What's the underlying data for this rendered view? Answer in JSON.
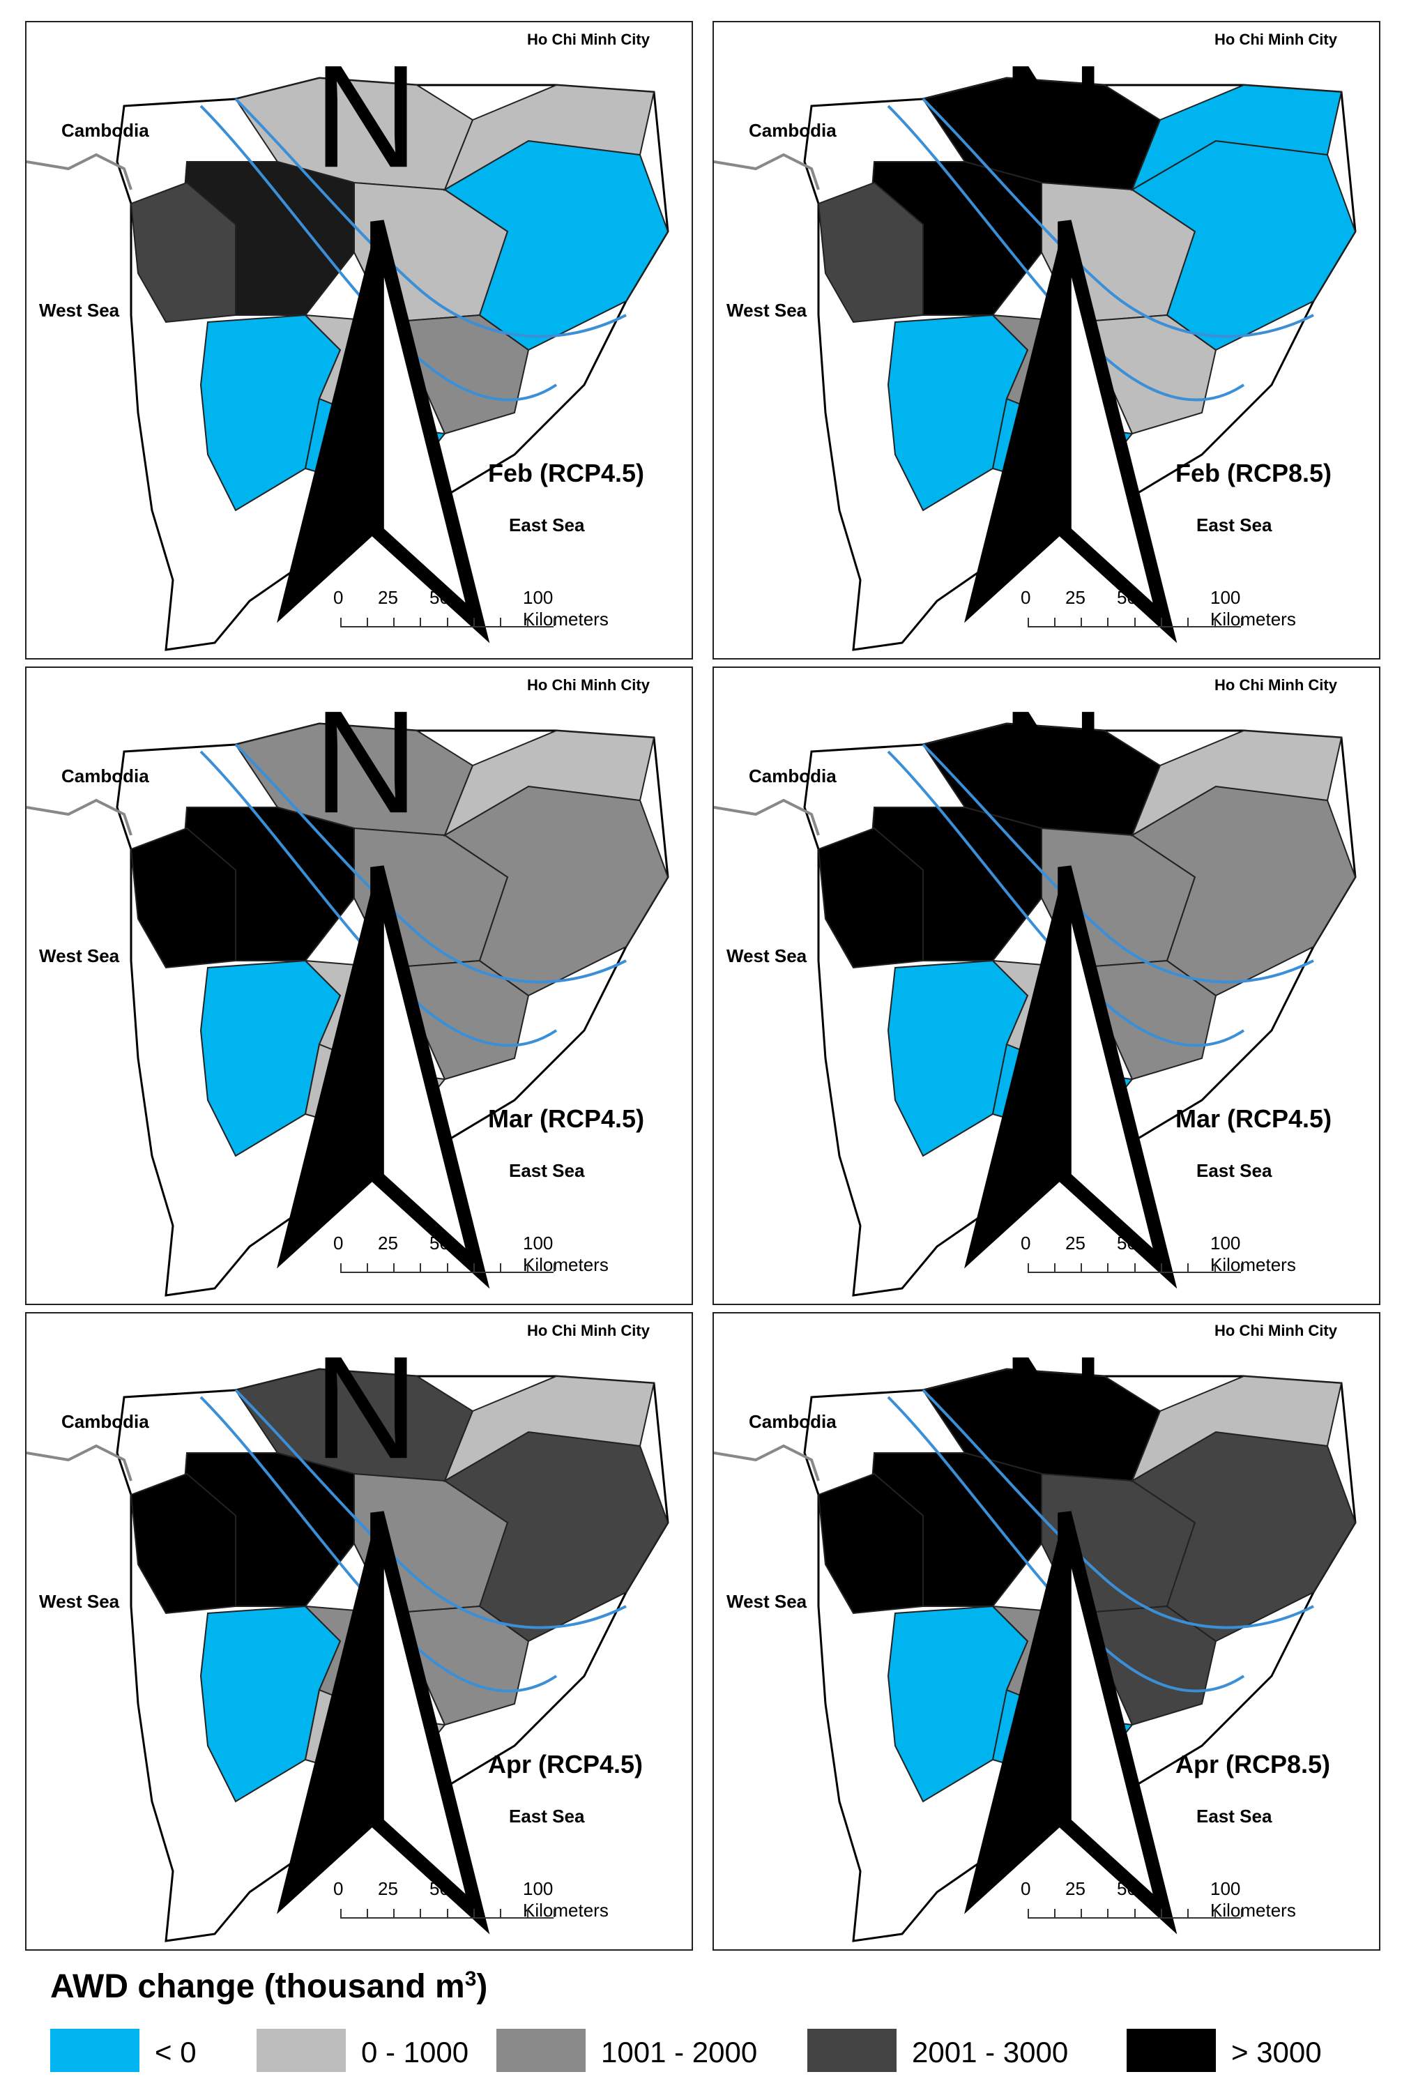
{
  "panels": [
    {
      "title": "Feb (RCP4.5)",
      "shades": [
        "#bdbdbd",
        "#1a1a1a",
        "#444",
        "#bdbdbd",
        "#00b4f0",
        "#bdbdbd",
        "#8a8a8a",
        "#00b4f0",
        "#00b4f0",
        "#bdbdbd"
      ]
    },
    {
      "title": "Feb (RCP8.5)",
      "shades": [
        "#000",
        "#000",
        "#444",
        "#bdbdbd",
        "#00b4f0",
        "#8a8a8a",
        "#bdbdbd",
        "#00b4f0",
        "#00b4f0",
        "#00b4f0"
      ]
    },
    {
      "title": "Mar (RCP4.5)",
      "shades": [
        "#8a8a8a",
        "#000",
        "#000",
        "#8a8a8a",
        "#00b4f0",
        "#bdbdbd",
        "#8a8a8a",
        "#8a8a8a",
        "#bdbdbd",
        "#bdbdbd"
      ]
    },
    {
      "title": "Mar (RCP4.5)",
      "shades": [
        "#000",
        "#000",
        "#000",
        "#8a8a8a",
        "#00b4f0",
        "#bdbdbd",
        "#8a8a8a",
        "#8a8a8a",
        "#00b4f0",
        "#bdbdbd"
      ]
    },
    {
      "title": "Apr (RCP4.5)",
      "shades": [
        "#444",
        "#000",
        "#000",
        "#8a8a8a",
        "#00b4f0",
        "#8a8a8a",
        "#8a8a8a",
        "#444",
        "#bdbdbd",
        "#bdbdbd"
      ]
    },
    {
      "title": "Apr (RCP8.5)",
      "shades": [
        "#000",
        "#000",
        "#000",
        "#444",
        "#00b4f0",
        "#8a8a8a",
        "#444",
        "#444",
        "#00b4f0",
        "#bdbdbd"
      ]
    }
  ],
  "labels": {
    "city": "Ho Chi Minh City",
    "cambodia": "Cambodia",
    "west_sea": "West Sea",
    "east_sea": "East Sea",
    "north": "N"
  },
  "scale_bar": {
    "ticks": [
      "0",
      "25",
      "50",
      "100 Kilometers"
    ]
  },
  "legend": {
    "title": "AWD change (thousand m",
    "title_sup": "3",
    "title_end": ")",
    "items": [
      {
        "label": "< 0",
        "color": "#00b4f0"
      },
      {
        "label": "0 - 1000",
        "color": "#bdbdbd"
      },
      {
        "label": "1001 - 2000",
        "color": "#8a8a8a"
      },
      {
        "label": "2001 - 3000",
        "color": "#444444"
      },
      {
        "label": "> 3000",
        "color": "#000000"
      }
    ]
  }
}
